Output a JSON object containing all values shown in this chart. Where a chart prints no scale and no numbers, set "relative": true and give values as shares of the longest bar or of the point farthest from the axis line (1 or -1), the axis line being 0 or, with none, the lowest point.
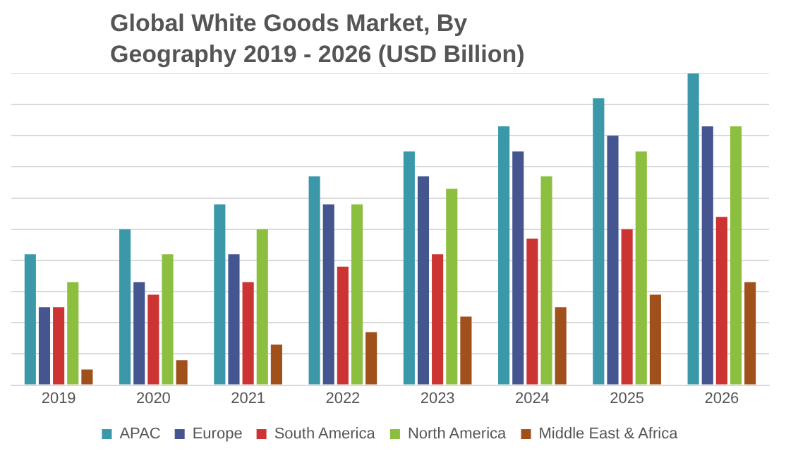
{
  "chart_data": {
    "type": "bar",
    "title": "Global White Goods Market, By Geography 2019 - 2026 (USD Billion)",
    "relative": true,
    "grid": "y",
    "legend": "bottom",
    "categories": [
      "2019",
      "2020",
      "2021",
      "2022",
      "2023",
      "2024",
      "2025",
      "2026"
    ],
    "series": [
      {
        "name": "APAC",
        "color": "#3a98a8",
        "values": [
          0.42,
          0.5,
          0.58,
          0.67,
          0.75,
          0.83,
          0.92,
          1
        ]
      },
      {
        "name": "Europe",
        "color": "#44558f",
        "values": [
          0.25,
          0.33,
          0.42,
          0.58,
          0.67,
          0.75,
          0.8,
          0.83
        ]
      },
      {
        "name": "South America",
        "color": "#cc3333",
        "values": [
          0.25,
          0.29,
          0.33,
          0.38,
          0.42,
          0.47,
          0.5,
          0.54
        ]
      },
      {
        "name": "North America",
        "color": "#8cbf3f",
        "values": [
          0.33,
          0.42,
          0.5,
          0.58,
          0.63,
          0.67,
          0.75,
          0.83
        ]
      },
      {
        "name": "Middle East & Africa",
        "color": "#a0501a",
        "values": [
          0.05,
          0.08,
          0.13,
          0.17,
          0.22,
          0.25,
          0.29,
          0.33
        ]
      }
    ]
  }
}
